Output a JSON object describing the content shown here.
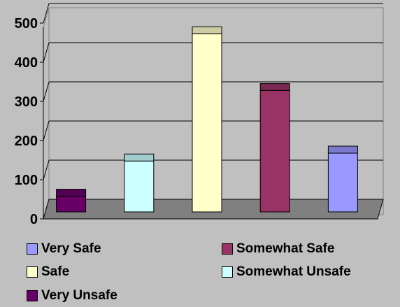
{
  "chart_data": {
    "type": "bar",
    "categories": [
      "Very Unsafe",
      "Somewhat Unsafe",
      "Safe",
      "Somewhat Safe",
      "Very Safe"
    ],
    "series": [
      {
        "name": "Very Unsafe",
        "color": "#660066",
        "values": [
          40,
          null,
          null,
          null,
          null
        ]
      },
      {
        "name": "Somewhat Unsafe",
        "color": "#ccffff",
        "values": [
          null,
          130,
          null,
          null,
          null
        ]
      },
      {
        "name": "Safe",
        "color": "#ffffcc",
        "values": [
          null,
          null,
          455,
          null,
          null
        ]
      },
      {
        "name": "Somewhat Safe",
        "color": "#993366",
        "values": [
          null,
          null,
          null,
          310,
          null
        ]
      },
      {
        "name": "Very Safe",
        "color": "#9999ff",
        "values": [
          null,
          null,
          null,
          null,
          150
        ]
      }
    ],
    "ylim": [
      0,
      500
    ],
    "yticks": [
      "0",
      "100",
      "200",
      "300",
      "400",
      "500"
    ],
    "grid": true,
    "legend_position": "bottom",
    "style": "3d"
  },
  "legend": [
    {
      "label": "Very Safe",
      "color": "#9999ff"
    },
    {
      "label": "Somewhat Safe",
      "color": "#993366"
    },
    {
      "label": "Safe",
      "color": "#ffffcc"
    },
    {
      "label": "Somewhat Unsafe",
      "color": "#ccffff"
    },
    {
      "label": "Very Unsafe",
      "color": "#660066"
    }
  ]
}
